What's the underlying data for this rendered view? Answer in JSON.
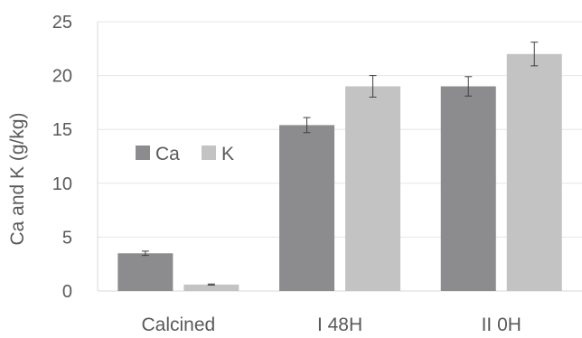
{
  "chart_data": {
    "type": "bar",
    "title": "",
    "xlabel": "",
    "ylabel": "Ca and K (g/kg)",
    "ylim": [
      0,
      25
    ],
    "yticks": [
      0,
      5,
      10,
      15,
      20,
      25
    ],
    "grid": true,
    "legend_position": "left-center",
    "categories": [
      "Calcined",
      "I 48H",
      "II 0H"
    ],
    "series": [
      {
        "name": "Ca",
        "color": "#8c8c8e",
        "values": [
          3.5,
          15.4,
          19.0
        ],
        "errors": [
          0.2,
          0.7,
          0.9
        ]
      },
      {
        "name": "K",
        "color": "#c3c3c3",
        "values": [
          0.6,
          19.0,
          22.0
        ],
        "errors": [
          0.05,
          1.0,
          1.1
        ]
      }
    ]
  }
}
